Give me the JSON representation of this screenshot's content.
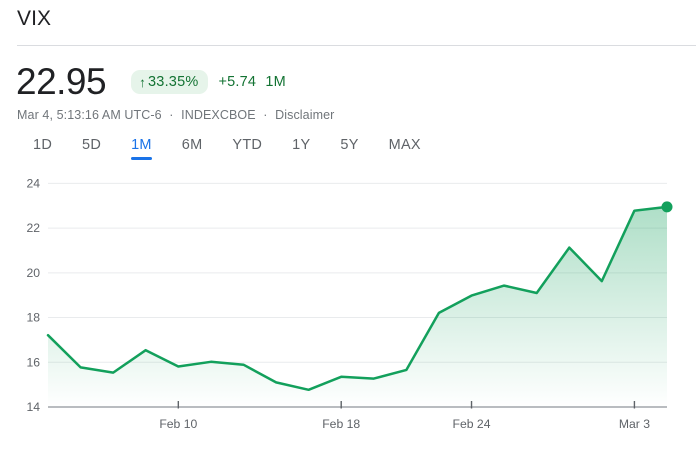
{
  "header": {
    "symbol_title": "VIX",
    "price": "22.95",
    "change_arrow": "↑",
    "change_percent": "33.35%",
    "change_absolute": "+5.74",
    "change_period": "1M",
    "timestamp": "Mar 4, 5:13:16 AM UTC-6",
    "separator": "·",
    "exchange": "INDEXCBOE",
    "disclaimer_label": "Disclaimer"
  },
  "range_tabs": {
    "items": [
      {
        "label": "1D",
        "active": false
      },
      {
        "label": "5D",
        "active": false
      },
      {
        "label": "1M",
        "active": true
      },
      {
        "label": "6M",
        "active": false
      },
      {
        "label": "YTD",
        "active": false
      },
      {
        "label": "1Y",
        "active": false
      },
      {
        "label": "5Y",
        "active": false
      },
      {
        "label": "MAX",
        "active": false
      }
    ]
  },
  "chart_data": {
    "type": "line",
    "title": "VIX 1 month price chart",
    "x": [
      "Feb 4",
      "Feb 5",
      "Feb 6",
      "Feb 7",
      "Feb 10",
      "Feb 11",
      "Feb 12",
      "Feb 13",
      "Feb 14",
      "Feb 18",
      "Feb 19",
      "Feb 20",
      "Feb 21",
      "Feb 24",
      "Feb 25",
      "Feb 26",
      "Feb 27",
      "Feb 28",
      "Mar 3",
      "Mar 4"
    ],
    "values": [
      17.21,
      15.77,
      15.54,
      16.54,
      15.81,
      16.02,
      15.89,
      15.1,
      14.77,
      15.35,
      15.27,
      15.66,
      18.21,
      18.98,
      19.43,
      19.1,
      21.13,
      19.63,
      22.78,
      22.95
    ],
    "xlabel": "",
    "ylabel": "",
    "ylim": [
      14,
      24
    ],
    "yticks": [
      14,
      16,
      18,
      20,
      22,
      24
    ],
    "xticks": [
      {
        "label": "Feb 10",
        "index": 4
      },
      {
        "label": "Feb 18",
        "index": 9
      },
      {
        "label": "Feb 24",
        "index": 13
      },
      {
        "label": "Mar 3",
        "index": 18
      }
    ],
    "grid": "horizontal",
    "legend": "none",
    "endpoint_marker": true,
    "line_color": "#13a05c"
  },
  "colors": {
    "positive_green": "#137333",
    "badge_background": "#e6f4ea",
    "active_tab_blue": "#1a73e8",
    "text_primary": "#202124",
    "text_secondary": "#70757a",
    "axis_text": "#5f6368",
    "gridline": "#e9ebed",
    "axis_line": "#8f949a",
    "divider": "#dadce0"
  }
}
